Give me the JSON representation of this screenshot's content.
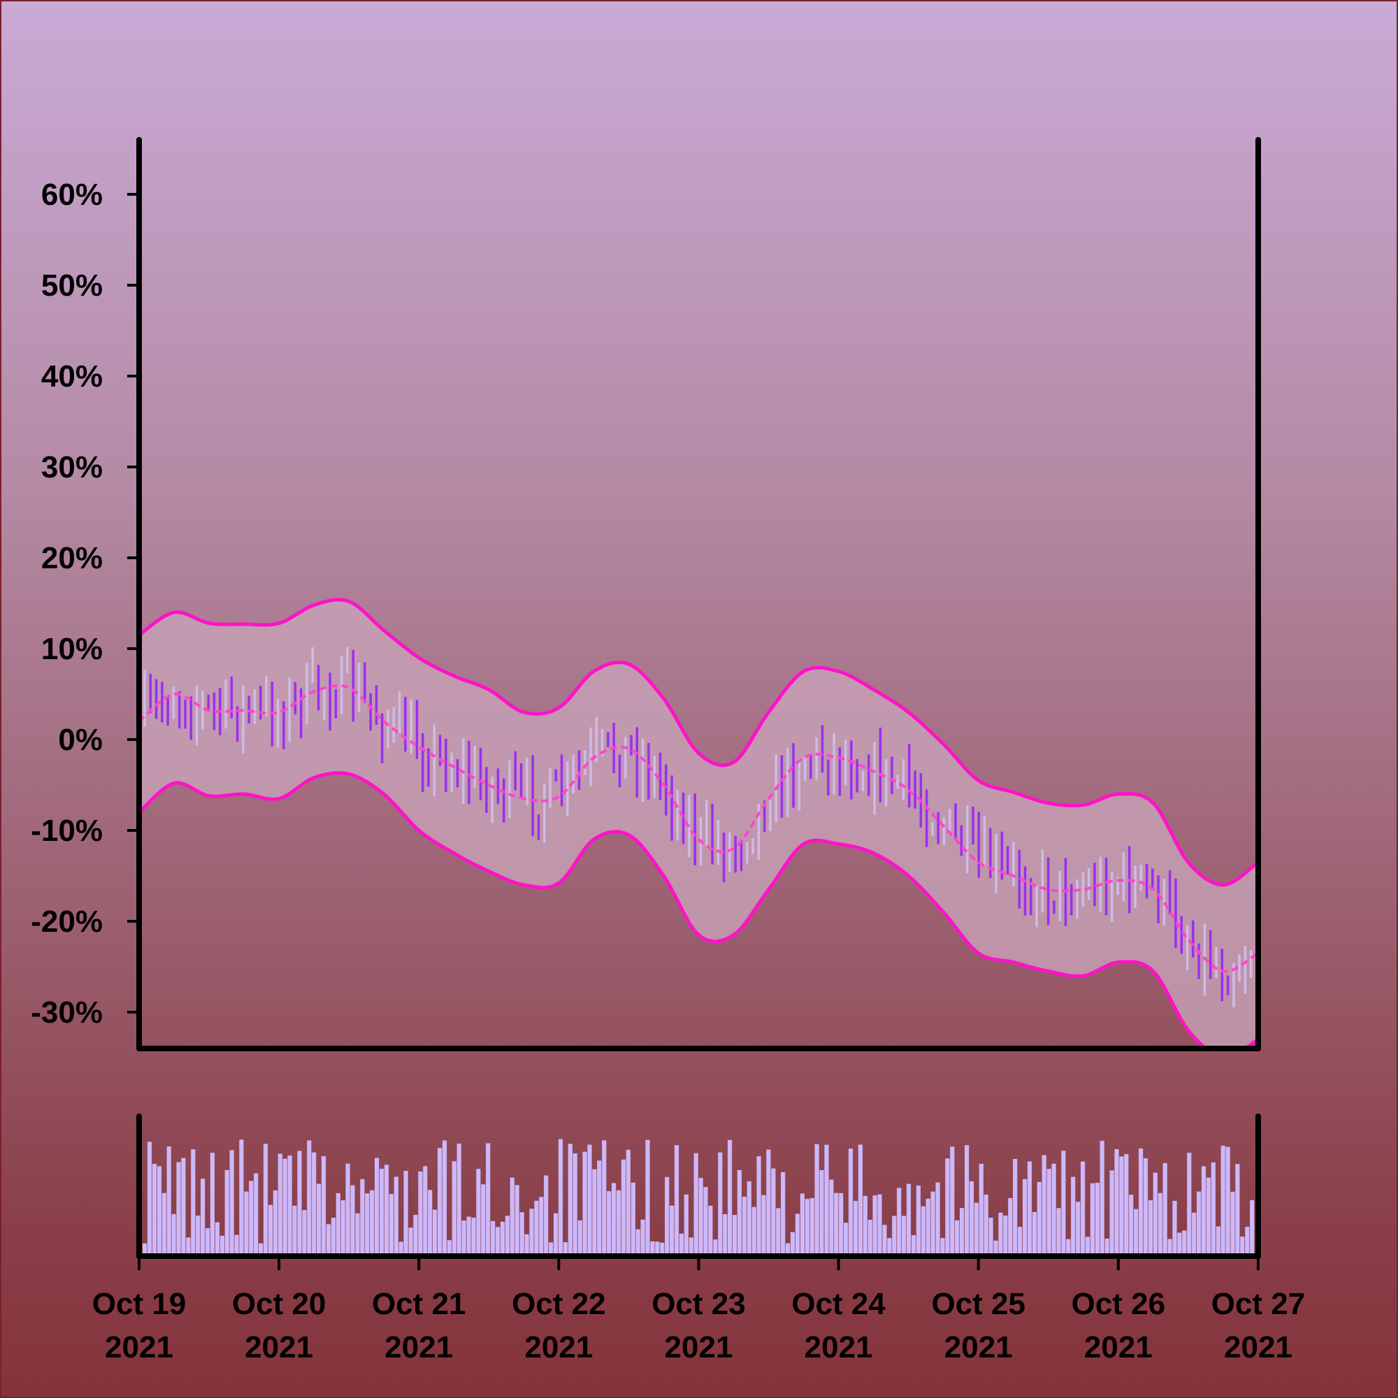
{
  "chart_data": {
    "type": "candlestick",
    "title": "",
    "xlabel": "",
    "ylabel": "",
    "ylim": [
      -34,
      66
    ],
    "y_ticks": [
      {
        "value": 60,
        "label": "60%"
      },
      {
        "value": 50,
        "label": "50%"
      },
      {
        "value": 40,
        "label": "40%"
      },
      {
        "value": 30,
        "label": "30%"
      },
      {
        "value": 20,
        "label": "20%"
      },
      {
        "value": 10,
        "label": "10%"
      },
      {
        "value": 0,
        "label": "0%"
      },
      {
        "value": -10,
        "label": "-10%"
      },
      {
        "value": -20,
        "label": "-20%"
      },
      {
        "value": -30,
        "label": "-30%"
      }
    ],
    "x_ticks": [
      {
        "date": "2021-10-19",
        "line1": "Oct 19",
        "line2": "2021"
      },
      {
        "date": "2021-10-20",
        "line1": "Oct 20",
        "line2": "2021"
      },
      {
        "date": "2021-10-21",
        "line1": "Oct 21",
        "line2": "2021"
      },
      {
        "date": "2021-10-22",
        "line1": "Oct 22",
        "line2": "2021"
      },
      {
        "date": "2021-10-23",
        "line1": "Oct 23",
        "line2": "2021"
      },
      {
        "date": "2021-10-24",
        "line1": "Oct 24",
        "line2": "2021"
      },
      {
        "date": "2021-10-25",
        "line1": "Oct 25",
        "line2": "2021"
      },
      {
        "date": "2021-10-26",
        "line1": "Oct 26",
        "line2": "2021"
      },
      {
        "date": "2021-10-27",
        "line1": "Oct 27",
        "line2": "2021"
      }
    ],
    "x_range": [
      "2021-10-19",
      "2021-10-27"
    ],
    "bollinger": {
      "x": [
        "2021-10-19T00:00",
        "2021-10-19T06:00",
        "2021-10-19T12:00",
        "2021-10-19T18:00",
        "2021-10-20T00:00",
        "2021-10-20T06:00",
        "2021-10-20T12:00",
        "2021-10-20T18:00",
        "2021-10-21T00:00",
        "2021-10-21T06:00",
        "2021-10-21T12:00",
        "2021-10-21T18:00",
        "2021-10-22T00:00",
        "2021-10-22T06:00",
        "2021-10-22T12:00",
        "2021-10-22T18:00",
        "2021-10-23T00:00",
        "2021-10-23T06:00",
        "2021-10-23T12:00",
        "2021-10-23T18:00",
        "2021-10-24T00:00",
        "2021-10-24T06:00",
        "2021-10-24T12:00",
        "2021-10-24T18:00",
        "2021-10-25T00:00",
        "2021-10-25T06:00",
        "2021-10-25T12:00",
        "2021-10-25T18:00",
        "2021-10-26T00:00",
        "2021-10-26T06:00",
        "2021-10-26T12:00",
        "2021-10-26T18:00",
        "2021-10-27T00:00"
      ],
      "upper": [
        11.5,
        14.0,
        12.8,
        12.7,
        12.8,
        14.8,
        15.2,
        12.0,
        9.0,
        7.0,
        5.5,
        3.0,
        3.5,
        7.5,
        8.3,
        4.5,
        -1.5,
        -2.5,
        3.0,
        7.5,
        7.5,
        5.5,
        3.0,
        -0.5,
        -4.5,
        -5.8,
        -7.0,
        -7.2,
        -6.0,
        -7.0,
        -13.5,
        -16.0,
        -13.5
      ],
      "middle": [
        2.0,
        5.0,
        3.2,
        3.2,
        3.0,
        5.3,
        5.7,
        2.0,
        -0.8,
        -3.0,
        -5.0,
        -6.5,
        -6.3,
        -2.0,
        -1.0,
        -5.0,
        -11.0,
        -12.0,
        -6.5,
        -2.0,
        -2.0,
        -3.5,
        -5.5,
        -9.5,
        -13.5,
        -15.0,
        -16.5,
        -16.5,
        -15.5,
        -16.5,
        -22.0,
        -25.5,
        -23.5
      ],
      "lower": [
        -8.0,
        -4.8,
        -6.2,
        -6.0,
        -6.5,
        -4.2,
        -3.8,
        -6.0,
        -10.0,
        -12.5,
        -14.5,
        -16.0,
        -15.8,
        -11.0,
        -10.5,
        -15.0,
        -21.5,
        -21.5,
        -16.5,
        -11.5,
        -11.5,
        -12.5,
        -15.0,
        -19.0,
        -23.5,
        -24.5,
        -25.5,
        -26.0,
        -24.5,
        -25.5,
        -32.0,
        -35.0,
        -33.0
      ]
    },
    "series": [
      {
        "name": "",
        "colors": {
          "up": "#cfbbe6",
          "down": "#9b2ef0"
        }
      }
    ],
    "volume": {
      "color": "#ccb8fa",
      "relative": true
    },
    "colors": {
      "band_line": "#ff12c8",
      "band_fill": "#c8a3b8",
      "middle_line": "#ff45cf",
      "axes": "#000000"
    },
    "grid": false,
    "legend": "none"
  }
}
